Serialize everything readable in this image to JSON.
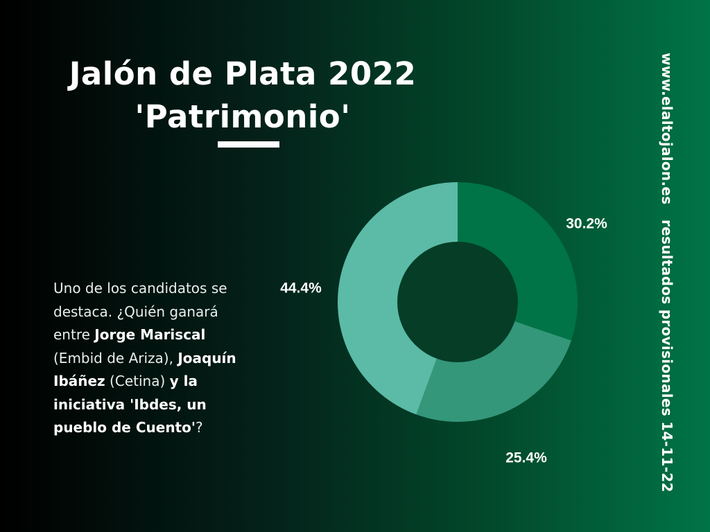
{
  "title": {
    "line1": "Jalón de Plata 2022",
    "line2": "'Patrimonio'"
  },
  "side_text": {
    "site": "www.elaltojalon.es",
    "note": "resultados provisionales 14-11-22"
  },
  "description": {
    "text1": "Uno de los candidatos se destaca. ¿Quién ganará entre ",
    "name1": "Jorge Mariscal",
    "text2": " (Embid de Ariza), ",
    "name2": "Joaquín Ibáñez",
    "text3": " (Cetina) ",
    "name3": "y la iniciativa 'Ibdes, un pueblo de Cuento'",
    "text4": "?"
  },
  "colors": {
    "slice_1": "#007446",
    "slice_2": "#34977a",
    "slice_3": "#5bbba6",
    "hole": "#053d27"
  },
  "chart_data": {
    "type": "pie",
    "donut": true,
    "slices": [
      {
        "value": 30.2,
        "label": "30.2%"
      },
      {
        "value": 25.4,
        "label": "25.4%"
      },
      {
        "value": 44.4,
        "label": "44.4%"
      }
    ],
    "legend": "none",
    "start": "top",
    "direction": "clockwise"
  }
}
